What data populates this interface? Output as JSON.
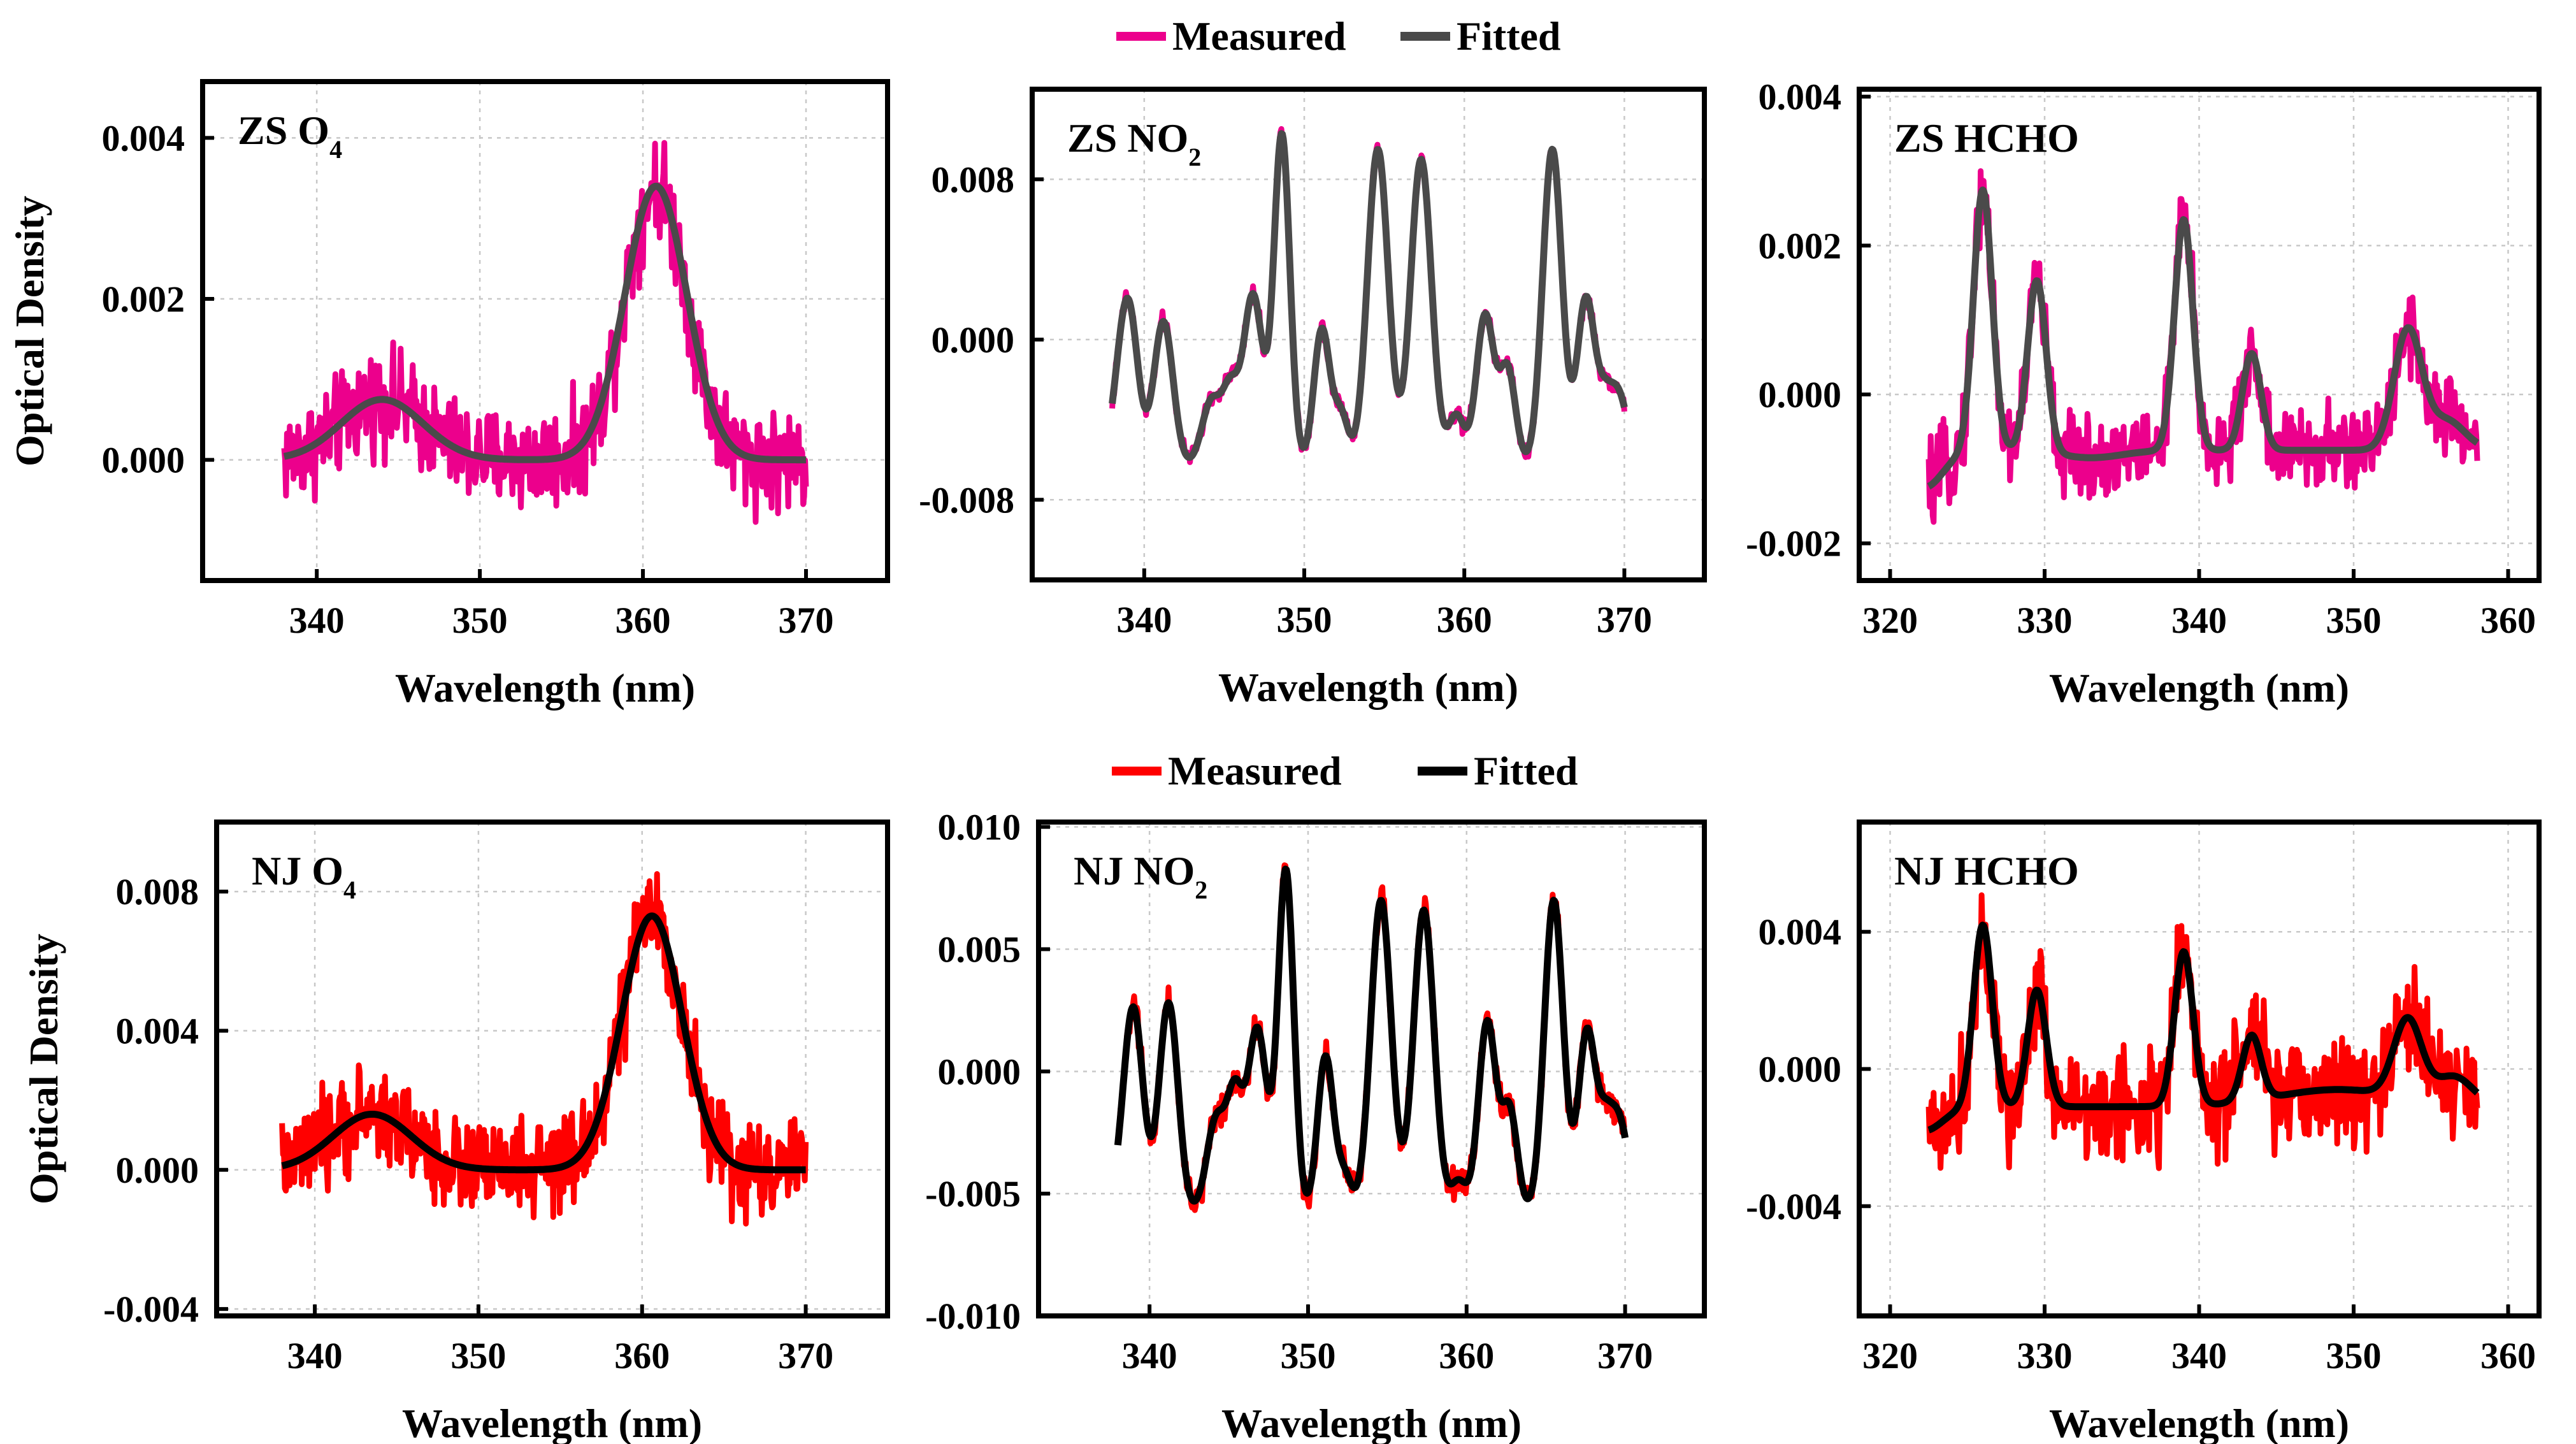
{
  "chart_data": [
    {
      "id": "zs-o4",
      "type": "line",
      "label": "ZS  O",
      "label_sub": "4",
      "xlabel": "Wavelength (nm)",
      "ylabel": "Optical Density",
      "xlim": [
        333,
        375
      ],
      "ylim": [
        -0.0015,
        0.0047
      ],
      "xticks": [
        340,
        350,
        360,
        370
      ],
      "xtick_labels": [
        "340",
        "350",
        "360",
        "370"
      ],
      "yticks": [
        0,
        0.002,
        0.004
      ],
      "ytick_labels": [
        "0.000",
        "0.002",
        "0.004"
      ],
      "x_range": [
        338,
        370
      ],
      "noise": 0.0005,
      "measured_color": "#ec008c",
      "fitted_color": "#4a4a4a",
      "series": [
        {
          "name": "Measured"
        },
        {
          "name": "Fitted",
          "baseline": 0,
          "peaks": [
            [
              344,
              0.00075,
              2.5
            ],
            [
              360.8,
              0.0034,
              1.9
            ]
          ]
        }
      ]
    },
    {
      "id": "zs-no2",
      "type": "line",
      "label": "ZS  NO",
      "label_sub": "2",
      "xlabel": "Wavelength (nm)",
      "ylabel": "",
      "xlim": [
        333,
        375
      ],
      "ylim": [
        -0.012,
        0.0125
      ],
      "xticks": [
        340,
        350,
        360,
        370
      ],
      "xtick_labels": [
        "340",
        "350",
        "360",
        "370"
      ],
      "yticks": [
        -0.008,
        0,
        0.008
      ],
      "ytick_labels": [
        "-0.008",
        "0.000",
        "0.008"
      ],
      "x_range": [
        338,
        370
      ],
      "noise": 0.00035,
      "measured_color": "#ec008c",
      "fitted_color": "#4a4a4a",
      "series": [
        {
          "name": "Measured"
        },
        {
          "name": "Fitted",
          "baseline": -0.0063,
          "peaks": [
            [
              338.2,
              0.0012,
              0.5
            ],
            [
              339,
              0.008,
              0.6
            ],
            [
              341.2,
              0.0072,
              0.6
            ],
            [
              344.2,
              0.0032,
              0.6
            ],
            [
              345.4,
              0.0035,
              0.5
            ],
            [
              346.8,
              0.0085,
              0.6
            ],
            [
              348.6,
              0.0165,
              0.5
            ],
            [
              351.1,
              0.0068,
              0.5
            ],
            [
              352.3,
              0.0025,
              0.45
            ],
            [
              354.6,
              0.0158,
              0.65
            ],
            [
              357.3,
              0.0153,
              0.65
            ],
            [
              359.5,
              0.0025,
              0.5
            ],
            [
              361.3,
              0.0075,
              0.55
            ],
            [
              362.7,
              0.0048,
              0.5
            ],
            [
              365.5,
              0.0158,
              0.6
            ],
            [
              367.6,
              0.0083,
              0.55
            ],
            [
              368.7,
              0.0022,
              0.45
            ],
            [
              369.6,
              0.0036,
              0.6
            ]
          ]
        }
      ]
    },
    {
      "id": "zs-hcho",
      "type": "line",
      "label": "ZS  HCHO",
      "label_sub": "",
      "xlabel": "Wavelength (nm)",
      "ylabel": "",
      "xlim": [
        318,
        362
      ],
      "ylim": [
        -0.0025,
        0.0041
      ],
      "xticks": [
        320,
        330,
        340,
        350,
        360
      ],
      "xtick_labels": [
        "320",
        "330",
        "340",
        "350",
        "360"
      ],
      "yticks": [
        -0.002,
        0,
        0.002,
        0.004
      ],
      "ytick_labels": [
        "-0.002",
        "0.000",
        "0.002",
        "0.004"
      ],
      "x_range": [
        322.5,
        358
      ],
      "noise": 0.00045,
      "measured_color": "#ec008c",
      "fitted_color": "#4a4a4a",
      "series": [
        {
          "name": "Measured"
        },
        {
          "name": "Fitted",
          "baseline": -0.00075,
          "peaks": [
            [
              322.2,
              -0.0005,
              1.2
            ],
            [
              326,
              0.0035,
              0.6
            ],
            [
              329.5,
              0.0023,
              0.6
            ],
            [
              333,
              -0.0001,
              2.0
            ],
            [
              339,
              0.0031,
              0.6
            ],
            [
              343.4,
              0.0013,
              0.6
            ],
            [
              353.5,
              0.0016,
              0.9
            ],
            [
              356,
              0.0004,
              1.2
            ]
          ]
        }
      ]
    },
    {
      "id": "nj-o4",
      "type": "line",
      "label": "NJ O",
      "label_sub": "4",
      "xlabel": "Wavelength (nm)",
      "ylabel": "Optical Density",
      "xlim": [
        334,
        375
      ],
      "ylim": [
        -0.0042,
        0.01
      ],
      "xticks": [
        340,
        350,
        360,
        370
      ],
      "xtick_labels": [
        "340",
        "350",
        "360",
        "370"
      ],
      "yticks": [
        -0.004,
        0,
        0.004,
        0.008
      ],
      "ytick_labels": [
        "-0.004",
        "0.000",
        "0.004",
        "0.008"
      ],
      "x_range": [
        338,
        370
      ],
      "noise": 0.0011,
      "measured_color": "#ff0000",
      "fitted_color": "#000000",
      "series": [
        {
          "name": "Measured"
        },
        {
          "name": "Fitted",
          "baseline": 0,
          "peaks": [
            [
              343.5,
              0.0016,
              2.4
            ],
            [
              360.6,
              0.0073,
              1.85
            ]
          ]
        }
      ]
    },
    {
      "id": "nj-no2",
      "type": "line",
      "label": "NJ NO",
      "label_sub": "2",
      "xlabel": "Wavelength (nm)",
      "ylabel": "",
      "xlim": [
        333,
        375
      ],
      "ylim": [
        -0.01,
        0.0102
      ],
      "xticks": [
        340,
        350,
        360,
        370
      ],
      "xtick_labels": [
        "340",
        "350",
        "360",
        "370"
      ],
      "yticks": [
        -0.01,
        -0.005,
        0,
        0.005,
        0.01
      ],
      "ytick_labels": [
        "-0.010",
        "-0.005",
        "0.000",
        "0.005",
        "0.010"
      ],
      "x_range": [
        338,
        370
      ],
      "noise": 0.0005,
      "measured_color": "#ff0000",
      "fitted_color": "#000000",
      "series": [
        {
          "name": "Measured"
        },
        {
          "name": "Fitted",
          "baseline": -0.0058,
          "peaks": [
            [
              338.2,
              0.0008,
              0.5
            ],
            [
              339,
              0.0082,
              0.6
            ],
            [
              341.2,
              0.0086,
              0.6
            ],
            [
              344.2,
              0.0038,
              0.6
            ],
            [
              345.4,
              0.0045,
              0.5
            ],
            [
              346.8,
              0.0075,
              0.6
            ],
            [
              348.6,
              0.014,
              0.5
            ],
            [
              351.1,
              0.0064,
              0.5
            ],
            [
              352.3,
              0.0015,
              0.45
            ],
            [
              354.6,
              0.0128,
              0.65
            ],
            [
              357.3,
              0.0124,
              0.65
            ],
            [
              359.5,
              0.0013,
              0.5
            ],
            [
              361.3,
              0.0078,
              0.55
            ],
            [
              362.7,
              0.0042,
              0.5
            ],
            [
              365.5,
              0.0128,
              0.6
            ],
            [
              367.6,
              0.0074,
              0.55
            ],
            [
              368.7,
              0.0025,
              0.45
            ],
            [
              369.6,
              0.0038,
              0.6
            ]
          ]
        }
      ]
    },
    {
      "id": "nj-hcho",
      "type": "line",
      "label": "NJ HCHO",
      "label_sub": "",
      "xlabel": "Wavelength (nm)",
      "ylabel": "",
      "xlim": [
        318,
        362
      ],
      "ylim": [
        -0.0072,
        0.0072
      ],
      "xticks": [
        320,
        330,
        340,
        350,
        360
      ],
      "xtick_labels": [
        "320",
        "330",
        "340",
        "350",
        "360"
      ],
      "yticks": [
        -0.004,
        0,
        0.004
      ],
      "ytick_labels": [
        "-0.004",
        "0.000",
        "0.004"
      ],
      "x_range": [
        322.5,
        358
      ],
      "noise": 0.0013,
      "measured_color": "#ff0000",
      "fitted_color": "#000000",
      "series": [
        {
          "name": "Measured"
        },
        {
          "name": "Fitted",
          "baseline": -0.0011,
          "peaks": [
            [
              322.2,
              -0.0007,
              1.2
            ],
            [
              326,
              0.0053,
              0.6
            ],
            [
              329.5,
              0.0034,
              0.6
            ],
            [
              339,
              0.0045,
              0.6
            ],
            [
              343.4,
              0.0019,
              0.6
            ],
            [
              349,
              0.0005,
              4.0
            ],
            [
              353.5,
              0.0023,
              0.9
            ],
            [
              356.5,
              0.0008,
              1.2
            ]
          ]
        }
      ]
    }
  ],
  "legends": [
    {
      "measured_label": "Measured",
      "fitted_label": "Fitted",
      "measured_color": "#ec008c",
      "fitted_color": "#4a4a4a"
    },
    {
      "measured_label": "Measured",
      "fitted_label": "Fitted",
      "measured_color": "#ff0000",
      "fitted_color": "#000000"
    }
  ]
}
